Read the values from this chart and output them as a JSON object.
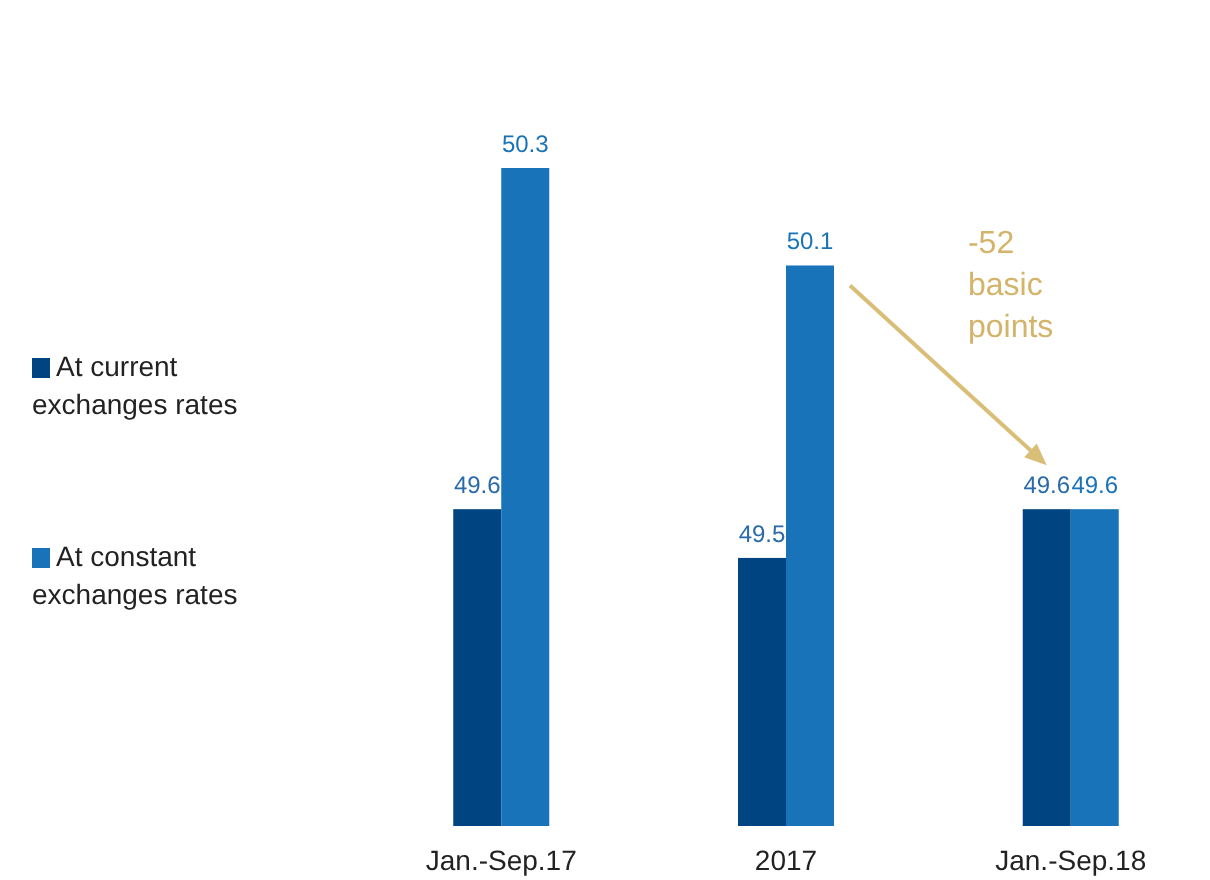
{
  "chart_data": {
    "type": "bar",
    "categories": [
      "Jan.-Sep.17",
      "2017",
      "Jan.-Sep.18"
    ],
    "series": [
      {
        "name": "At current exchanges rates",
        "color": "#004481",
        "values": [
          49.6,
          49.5,
          49.6
        ]
      },
      {
        "name": "At constant exchanges rates",
        "color": "#1973b8",
        "values": [
          50.3,
          50.1,
          49.6
        ]
      }
    ],
    "ylim": [
      48.95,
      50.3
    ],
    "data_labels": true,
    "legend": "left",
    "annotations": [
      "-52\nbasic\npoints"
    ]
  }
}
